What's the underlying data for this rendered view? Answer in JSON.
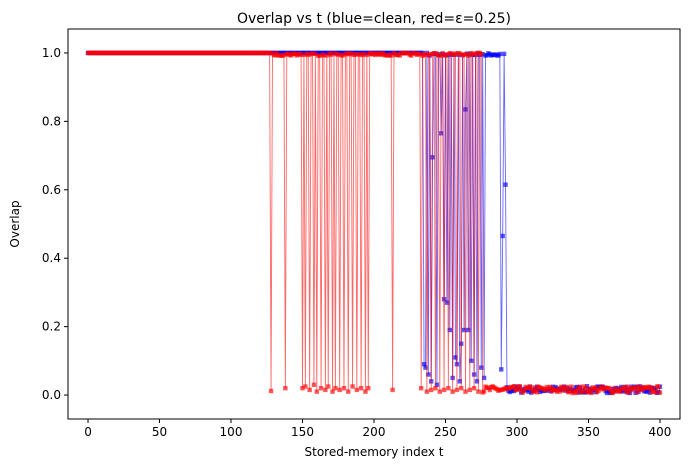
{
  "chart_data": {
    "type": "scatter",
    "title": "Overlap vs t  (blue=clean, red=ε=0.25)",
    "xlabel": "Stored-memory index t",
    "ylabel": "Overlap",
    "xlim": [
      -14,
      414
    ],
    "ylim": [
      -0.07,
      1.07
    ],
    "xticks": [
      0,
      50,
      100,
      150,
      200,
      250,
      300,
      350,
      400
    ],
    "yticks": [
      0.0,
      0.2,
      0.4,
      0.6,
      0.8,
      1.0
    ],
    "ytick_labels": [
      "0.0",
      "0.2",
      "0.4",
      "0.6",
      "0.8",
      "1.0"
    ],
    "grid": false,
    "series": [
      {
        "name": "clean",
        "color": "#0000ff",
        "x_start": 0,
        "x_end": 400,
        "plateau_value": 1.0,
        "plateau_until": 234,
        "partial_until": 292,
        "collapsed": [
          {
            "x": 235,
            "y": 0.09
          },
          {
            "x": 236,
            "y": 0.08
          },
          {
            "x": 238,
            "y": 0.06
          },
          {
            "x": 240,
            "y": 0.04
          },
          {
            "x": 241,
            "y": 0.695
          },
          {
            "x": 244,
            "y": 0.03
          },
          {
            "x": 247,
            "y": 0.765
          },
          {
            "x": 249,
            "y": 0.28
          },
          {
            "x": 251,
            "y": 0.27
          },
          {
            "x": 253,
            "y": 0.19
          },
          {
            "x": 255,
            "y": 0.05
          },
          {
            "x": 257,
            "y": 0.11
          },
          {
            "x": 258,
            "y": 0.09
          },
          {
            "x": 260,
            "y": 0.04
          },
          {
            "x": 261,
            "y": 0.15
          },
          {
            "x": 263,
            "y": 0.19
          },
          {
            "x": 264,
            "y": 0.835
          },
          {
            "x": 266,
            "y": 0.19
          },
          {
            "x": 268,
            "y": 0.1
          },
          {
            "x": 270,
            "y": 0.06
          },
          {
            "x": 272,
            "y": 0.04
          },
          {
            "x": 275,
            "y": 0.08
          },
          {
            "x": 277,
            "y": 0.05
          },
          {
            "x": 289,
            "y": 0.075
          },
          {
            "x": 290,
            "y": 0.465
          },
          {
            "x": 292,
            "y": 0.615
          }
        ]
      },
      {
        "name": "ε=0.25",
        "color": "#ff0000",
        "x_start": 0,
        "x_end": 400,
        "plateau_value": 1.0,
        "plateau_until": 127,
        "partial_until": 275,
        "collapsed": [
          {
            "x": 128,
            "y": 0.012
          },
          {
            "x": 138,
            "y": 0.02
          },
          {
            "x": 150,
            "y": 0.02
          },
          {
            "x": 152,
            "y": 0.025
          },
          {
            "x": 155,
            "y": 0.015
          },
          {
            "x": 158,
            "y": 0.03
          },
          {
            "x": 160,
            "y": 0.01
          },
          {
            "x": 163,
            "y": 0.02
          },
          {
            "x": 166,
            "y": 0.015
          },
          {
            "x": 168,
            "y": 0.025
          },
          {
            "x": 171,
            "y": 0.01
          },
          {
            "x": 173,
            "y": 0.02
          },
          {
            "x": 176,
            "y": 0.015
          },
          {
            "x": 179,
            "y": 0.02
          },
          {
            "x": 182,
            "y": 0.01
          },
          {
            "x": 185,
            "y": 0.025
          },
          {
            "x": 188,
            "y": 0.015
          },
          {
            "x": 191,
            "y": 0.02
          },
          {
            "x": 194,
            "y": 0.01
          },
          {
            "x": 196,
            "y": 0.02
          },
          {
            "x": 213,
            "y": 0.015
          },
          {
            "x": 233,
            "y": 0.02
          },
          {
            "x": 237,
            "y": 0.01
          },
          {
            "x": 240,
            "y": 0.015
          },
          {
            "x": 243,
            "y": 0.02
          },
          {
            "x": 246,
            "y": 0.01
          },
          {
            "x": 249,
            "y": 0.015
          },
          {
            "x": 252,
            "y": 0.02
          },
          {
            "x": 255,
            "y": 0.01
          },
          {
            "x": 258,
            "y": 0.015
          },
          {
            "x": 261,
            "y": 0.02
          },
          {
            "x": 264,
            "y": 0.01
          },
          {
            "x": 267,
            "y": 0.015
          },
          {
            "x": 270,
            "y": 0.02
          },
          {
            "x": 273,
            "y": 0.01
          }
        ]
      }
    ]
  }
}
